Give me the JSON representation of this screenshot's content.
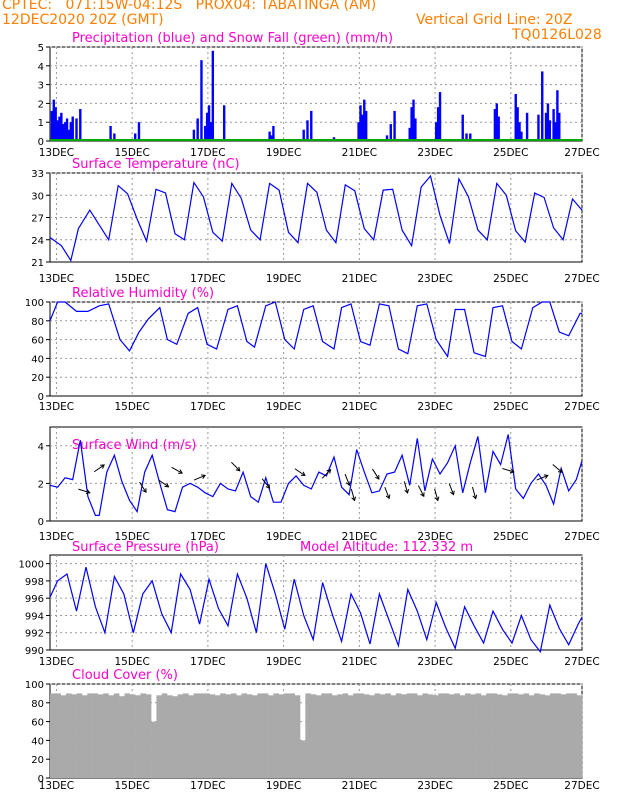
{
  "header": {
    "line1_left": "CPTEC:   071:15W-04:12S   PROX04: TABATINGA (AM)",
    "line2_left": "12DEC2020 20Z (GMT)",
    "line2_right": "Vertical Grid Line: 20Z",
    "line3_right": "TQ0126L028"
  },
  "colors": {
    "header": "#ff7f00",
    "title": "#ff00cc",
    "series": "#0000ff",
    "snow": "#00aa00",
    "cloud": "#aaaaaa"
  },
  "x_labels": [
    "13DEC",
    "15DEC",
    "17DEC",
    "19DEC",
    "21DEC",
    "23DEC",
    "25DEC",
    "27DEC"
  ],
  "chart_data": [
    {
      "type": "bar",
      "title": "Precipitation (blue) and Snow Fall (green) (mm/h)",
      "ylim": [
        0,
        5
      ],
      "yticks": [
        "0",
        "1",
        "2",
        "3",
        "4",
        "5"
      ],
      "x_days_from_12DEC_20Z": [
        0.05,
        0.1,
        0.15,
        0.2,
        0.25,
        0.3,
        0.35,
        0.4,
        0.45,
        0.5,
        0.55,
        0.6,
        0.7,
        0.8,
        1.6,
        1.7,
        2.25,
        2.35,
        3.8,
        3.9,
        4.0,
        4.1,
        4.15,
        4.2,
        4.25,
        4.3,
        4.6,
        5.8,
        5.85,
        5.9,
        6.7,
        6.8,
        6.9,
        7.5,
        8.15,
        8.2,
        8.25,
        8.3,
        8.35,
        8.9,
        9.0,
        9.1,
        9.5,
        9.55,
        9.6,
        9.65,
        10.2,
        10.25,
        10.3,
        10.9,
        11.0,
        11.1,
        11.75,
        11.8,
        11.85,
        12.3,
        12.35,
        12.4,
        12.45,
        12.6,
        12.9,
        13.0,
        13.1,
        13.15,
        13.2,
        13.3,
        13.35,
        13.4,
        13.45
      ],
      "precip": [
        1.6,
        2.2,
        1.8,
        1.1,
        1.3,
        1.5,
        0.9,
        1.0,
        1.2,
        0.6,
        1.0,
        1.3,
        1.2,
        1.7,
        0.8,
        0.4,
        0.4,
        1.0,
        0.6,
        1.2,
        4.3,
        0.8,
        1.5,
        1.9,
        1.0,
        4.8,
        1.9,
        0.5,
        0.3,
        0.8,
        0.6,
        1.1,
        1.6,
        0.2,
        1.0,
        1.9,
        1.4,
        2.2,
        1.6,
        0.3,
        0.9,
        1.6,
        0.7,
        1.8,
        2.2,
        1.2,
        1.0,
        1.8,
        2.6,
        1.4,
        0.4,
        0.4,
        1.7,
        2.0,
        1.3,
        2.5,
        1.8,
        1.0,
        0.5,
        1.5,
        1.4,
        3.7,
        1.5,
        2.0,
        1.1,
        1.7,
        1.0,
        2.7,
        1.5
      ],
      "snow": "0 throughout"
    },
    {
      "type": "line",
      "title": "Surface Temperature (nC)",
      "ylim": [
        21,
        33
      ],
      "yticks": [
        "21",
        "24",
        "27",
        "30",
        "33"
      ],
      "x_days_from_12DEC_20Z": [
        0,
        0.3,
        0.55,
        0.75,
        1.05,
        1.3,
        1.55,
        1.8,
        2.05,
        2.3,
        2.55,
        2.8,
        3.05,
        3.3,
        3.55,
        3.8,
        4.05,
        4.3,
        4.55,
        4.8,
        5.05,
        5.3,
        5.55,
        5.8,
        6.05,
        6.3,
        6.55,
        6.8,
        7.05,
        7.3,
        7.55,
        7.8,
        8.05,
        8.3,
        8.55,
        8.8,
        9.05,
        9.3,
        9.55,
        9.8,
        10.05,
        10.3,
        10.55,
        10.8,
        11.05,
        11.3,
        11.55,
        11.8,
        12.05,
        12.3,
        12.55,
        12.8,
        13.05,
        13.3,
        13.55,
        13.8,
        14.05
      ],
      "values": [
        24.3,
        23.2,
        21.2,
        25.5,
        28,
        26,
        24,
        31.3,
        30.2,
        26.8,
        23.8,
        30.8,
        30.3,
        24.8,
        24,
        31.7,
        29.8,
        25,
        23.8,
        31.6,
        29.6,
        25.3,
        24,
        31.6,
        30.7,
        25,
        23.6,
        31.6,
        30.4,
        25.3,
        23.6,
        31.4,
        30.6,
        25.5,
        24,
        30.7,
        30.8,
        25.3,
        23.2,
        31.1,
        32.6,
        27.3,
        23.5,
        32.2,
        29.8,
        25.3,
        24,
        31.6,
        30,
        25.2,
        23.7,
        30.3,
        29.7,
        25.6,
        24,
        29.5,
        28
      ]
    },
    {
      "type": "line",
      "title": "Relative Humidity (%)",
      "ylim": [
        0,
        100
      ],
      "yticks": [
        "0",
        "20",
        "40",
        "60",
        "80",
        "100"
      ],
      "x_days_from_12DEC_20Z": [
        0,
        0.2,
        0.4,
        0.7,
        1.0,
        1.3,
        1.55,
        1.85,
        2.1,
        2.35,
        2.6,
        2.9,
        3.1,
        3.35,
        3.65,
        3.9,
        4.15,
        4.4,
        4.7,
        4.95,
        5.2,
        5.4,
        5.7,
        5.95,
        6.2,
        6.45,
        6.7,
        6.95,
        7.2,
        7.5,
        7.7,
        7.95,
        8.2,
        8.45,
        8.7,
        8.95,
        9.2,
        9.45,
        9.7,
        9.95,
        10.2,
        10.5,
        10.7,
        10.95,
        11.2,
        11.5,
        11.7,
        11.95,
        12.2,
        12.45,
        12.75,
        13.0,
        13.2,
        13.45,
        13.7,
        14.0,
        14.05
      ],
      "values": [
        80,
        100,
        100,
        90,
        90,
        96,
        98,
        60,
        48,
        68,
        82,
        94,
        60,
        55,
        88,
        94,
        55,
        50,
        92,
        96,
        58,
        52,
        96,
        100,
        60,
        50,
        92,
        96,
        58,
        50,
        94,
        98,
        58,
        54,
        98,
        96,
        50,
        45,
        96,
        98,
        60,
        42,
        92,
        92,
        46,
        42,
        94,
        96,
        58,
        50,
        94,
        100,
        100,
        68,
        64,
        88,
        88
      ]
    },
    {
      "type": "line",
      "title": "Surface Wind (m/s)",
      "ylim": [
        0,
        5
      ],
      "yticks": [
        "0",
        "2",
        "4"
      ],
      "x_days_from_12DEC_20Z": [
        0,
        0.2,
        0.4,
        0.6,
        0.8,
        1.0,
        1.2,
        1.3,
        1.5,
        1.7,
        1.9,
        2.1,
        2.3,
        2.5,
        2.7,
        2.9,
        3.1,
        3.3,
        3.5,
        3.7,
        3.9,
        4.1,
        4.3,
        4.5,
        4.7,
        4.9,
        5.1,
        5.3,
        5.5,
        5.7,
        5.9,
        6.1,
        6.3,
        6.5,
        6.7,
        6.9,
        7.1,
        7.3,
        7.5,
        7.7,
        7.9,
        8.1,
        8.3,
        8.5,
        8.7,
        8.9,
        9.1,
        9.3,
        9.5,
        9.7,
        9.9,
        10.1,
        10.3,
        10.5,
        10.7,
        10.9,
        11.1,
        11.3,
        11.5,
        11.7,
        11.9,
        12.1,
        12.3,
        12.5,
        12.7,
        12.9,
        13.1,
        13.3,
        13.5,
        13.7,
        13.9,
        14.05
      ],
      "values": [
        1.9,
        1.8,
        2.3,
        2.2,
        4.3,
        1.3,
        0.3,
        0.3,
        2.6,
        3.5,
        2.1,
        1.1,
        0.5,
        2.6,
        3.5,
        2.0,
        0.6,
        0.5,
        1.8,
        2.0,
        1.8,
        1.5,
        1.3,
        2.0,
        1.7,
        1.6,
        2.6,
        1.3,
        1.0,
        2.3,
        1.0,
        1.0,
        2.0,
        2.4,
        1.9,
        1.7,
        2.6,
        2.4,
        3.4,
        1.8,
        1.4,
        3.8,
        2.6,
        1.5,
        1.6,
        2.5,
        2.6,
        3.5,
        1.9,
        4.4,
        1.6,
        3.3,
        2.5,
        3.1,
        4.0,
        1.5,
        3.1,
        4.5,
        1.5,
        3.7,
        3.0,
        4.6,
        1.7,
        1.2,
        2.0,
        2.5,
        1.9,
        0.9,
        2.8,
        1.6,
        2.2,
        3.2
      ]
    },
    {
      "type": "line",
      "title": "Surface Pressure (hPa)",
      "annotation": "Model Altitude: 112.332 m",
      "ylim": [
        990,
        1001
      ],
      "yticks": [
        "990",
        "992",
        "994",
        "996",
        "998",
        "1000"
      ],
      "x_days_from_12DEC_20Z": [
        0,
        0.2,
        0.45,
        0.7,
        0.95,
        1.2,
        1.45,
        1.7,
        1.95,
        2.2,
        2.45,
        2.7,
        2.95,
        3.2,
        3.45,
        3.7,
        3.95,
        4.2,
        4.45,
        4.7,
        4.95,
        5.2,
        5.45,
        5.7,
        5.95,
        6.2,
        6.45,
        6.7,
        6.95,
        7.2,
        7.45,
        7.7,
        7.95,
        8.2,
        8.45,
        8.7,
        8.95,
        9.2,
        9.45,
        9.7,
        9.95,
        10.2,
        10.45,
        10.7,
        10.95,
        11.2,
        11.45,
        11.7,
        11.95,
        12.2,
        12.45,
        12.7,
        12.95,
        13.2,
        13.45,
        13.7,
        13.95,
        14.05
      ],
      "values": [
        996.1,
        998.0,
        998.8,
        994.5,
        999.6,
        995.0,
        992.0,
        998.5,
        996.5,
        992.0,
        996.5,
        998.0,
        994.2,
        992.0,
        998.8,
        997.0,
        993.0,
        998.2,
        994.8,
        992.8,
        998.8,
        996.0,
        992.0,
        1000.0,
        996.5,
        992.4,
        998.2,
        994.0,
        991.2,
        997.8,
        994.2,
        991.0,
        996.5,
        994.3,
        990.7,
        996.5,
        993.5,
        990.5,
        997.0,
        994.5,
        991.2,
        995.5,
        992.6,
        990.2,
        995.0,
        992.8,
        990.8,
        994.5,
        992.4,
        990.8,
        994.0,
        991.2,
        989.8,
        995.2,
        992.5,
        990.6,
        993.0,
        993.8
      ]
    },
    {
      "type": "bar",
      "title": "Cloud Cover (%)",
      "ylim": [
        0,
        100
      ],
      "yticks": [
        "0",
        "20",
        "40",
        "60",
        "80",
        "100"
      ],
      "typical": "~88% with frequent drops",
      "values_sampled_by_column": [
        90,
        90,
        88,
        90,
        89,
        90,
        88,
        90,
        90,
        89,
        90,
        88,
        90,
        87,
        90,
        89,
        88,
        90,
        89,
        60,
        88,
        90,
        88,
        87,
        89,
        90,
        88,
        90,
        90,
        90,
        89,
        88,
        90,
        89,
        90,
        88,
        90,
        89,
        88,
        90,
        90,
        88,
        90,
        89,
        90,
        90,
        88,
        40,
        90,
        89,
        88,
        90,
        90,
        88,
        89,
        90,
        88,
        90,
        90,
        89,
        88,
        90,
        89,
        90,
        88,
        90,
        89,
        90,
        90,
        88,
        90,
        89,
        88,
        90,
        90,
        89,
        90,
        88,
        90,
        89,
        90,
        88,
        90,
        90,
        89,
        88,
        90,
        90,
        89,
        90,
        88,
        90,
        89,
        88,
        90,
        90,
        89,
        90,
        90,
        88
      ]
    }
  ]
}
